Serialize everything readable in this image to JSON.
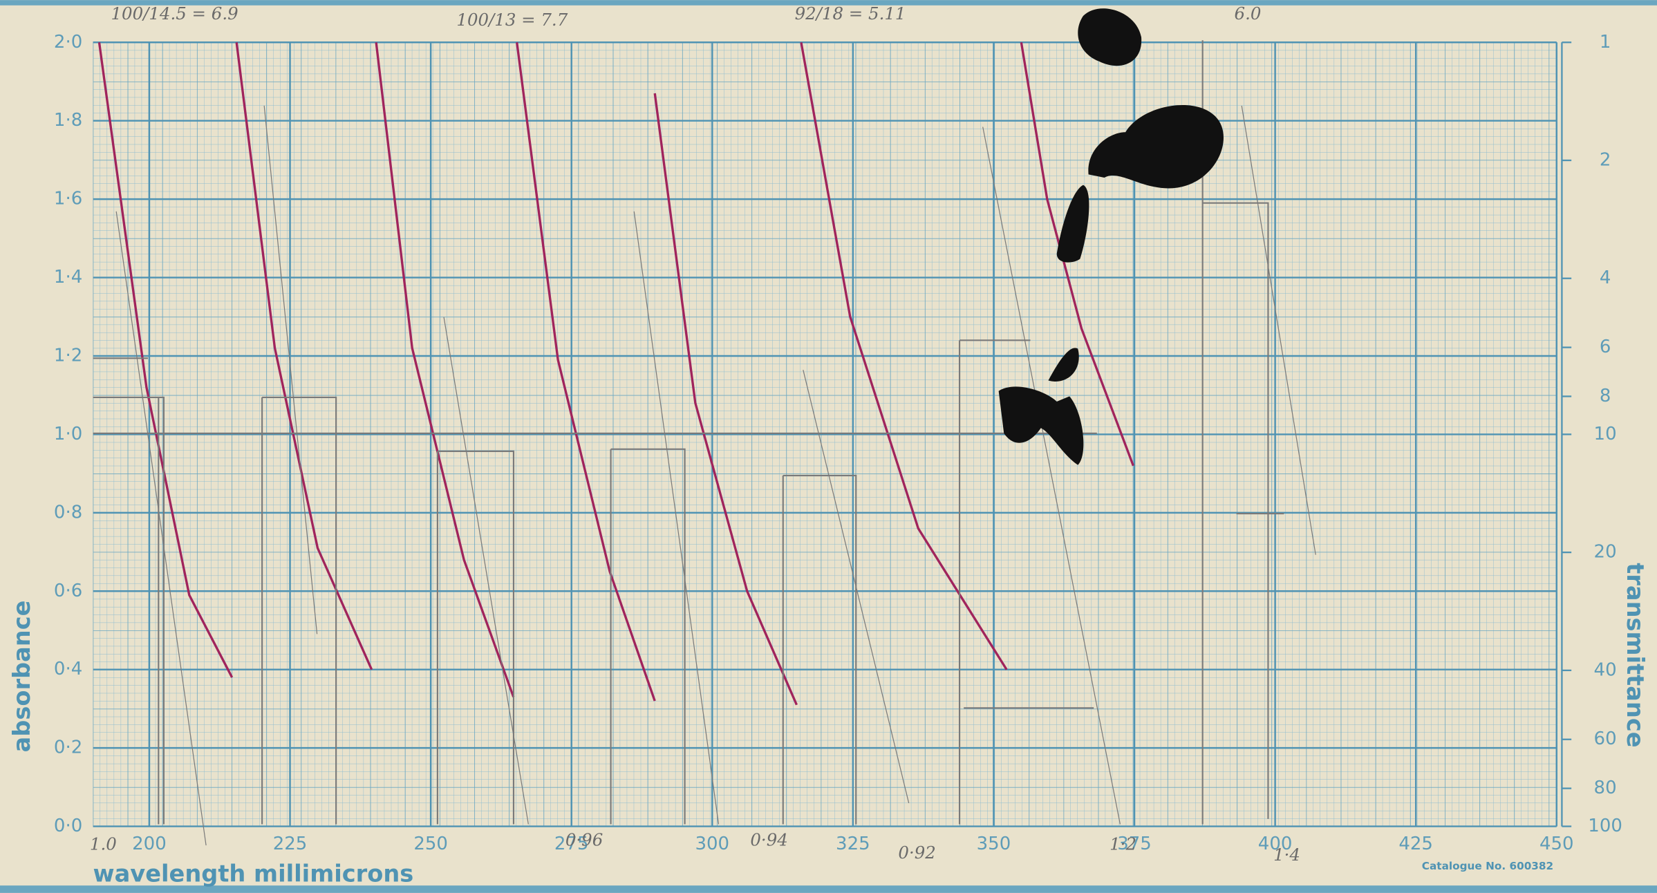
{
  "chart_data": {
    "type": "line",
    "x_label": "wavelength millimicrons",
    "y_label": "absorbance",
    "y2_label": "transmittance",
    "catalogue": "Catalogue No. 600382",
    "xlim": [
      190,
      450
    ],
    "xticks": [
      200,
      225,
      250,
      275,
      300,
      325,
      350,
      375,
      400,
      425,
      450
    ],
    "ylim": [
      0,
      2
    ],
    "yticks": [
      {
        "value": 0,
        "label": "0·0"
      },
      {
        "value": 0.2,
        "label": "0·2"
      },
      {
        "value": 0.4,
        "label": "0·4"
      },
      {
        "value": 0.6,
        "label": "0·6"
      },
      {
        "value": 0.8,
        "label": "0·8"
      },
      {
        "value": 1.0,
        "label": "1·0"
      },
      {
        "value": 1.2,
        "label": "1·2"
      },
      {
        "value": 1.4,
        "label": "1·4"
      },
      {
        "value": 1.6,
        "label": "1·6"
      },
      {
        "value": 1.8,
        "label": "1·8"
      },
      {
        "value": 2.0,
        "label": "2·0"
      }
    ],
    "y2lim": [
      100,
      1
    ],
    "y2scale": "log",
    "y2ticks": [
      1,
      2,
      4,
      6,
      8,
      10,
      20,
      40,
      60,
      80,
      100
    ],
    "grid": true,
    "series": [
      {
        "color": "#a0245c",
        "x": [
          191.1,
          199.5,
          207.1,
          214.7
        ],
        "values": [
          2.0,
          1.12,
          0.59,
          0.38
        ]
      },
      {
        "color": "#a0245c",
        "x": [
          215.5,
          222.3,
          229.9,
          239.5
        ],
        "values": [
          2.0,
          1.22,
          0.71,
          0.4
        ]
      },
      {
        "color": "#a0245c",
        "x": [
          240.3,
          246.7,
          255.9,
          264.7
        ],
        "values": [
          2.0,
          1.22,
          0.68,
          0.33
        ]
      },
      {
        "color": "#a0245c",
        "x": [
          265.3,
          272.6,
          281.8,
          289.8
        ],
        "values": [
          2.0,
          1.19,
          0.65,
          0.32
        ]
      },
      {
        "color": "#a0245c",
        "x": [
          289.8,
          297.0,
          306.2,
          315.0
        ],
        "values": [
          1.87,
          1.08,
          0.6,
          0.31
        ]
      },
      {
        "color": "#a0245c",
        "x": [
          315.8,
          324.5,
          336.6,
          352.3
        ],
        "values": [
          2.0,
          1.3,
          0.76,
          0.4
        ]
      },
      {
        "color": "#a0245c",
        "x": [
          354.9,
          359.5,
          365.6,
          374.8
        ],
        "values": [
          2.0,
          1.6,
          1.27,
          0.92
        ]
      }
    ],
    "annotations": [
      "100/14.5 = 6.9",
      "100/13 = 7.7",
      "92/18 = 5.11",
      "6.0",
      "1.0",
      "0·96",
      "0·94",
      "0·92",
      "1·2",
      "1·4"
    ]
  }
}
